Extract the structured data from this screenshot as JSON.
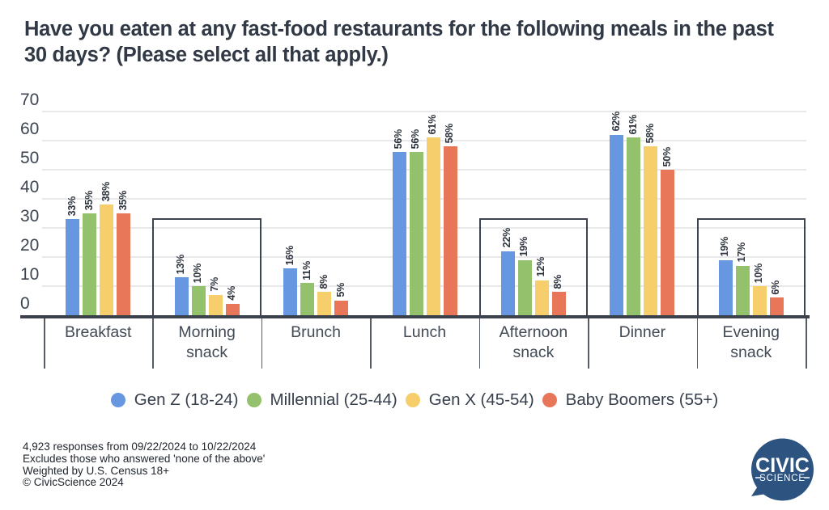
{
  "chart_data": {
    "type": "bar",
    "title": "Have you eaten at any fast-food restaurants for the following meals in the past 30 days? (Please select all that apply.)",
    "categories": [
      "Breakfast",
      "Morning\nsnack",
      "Brunch",
      "Lunch",
      "Afternoon\nsnack",
      "Dinner",
      "Evening\nsnack"
    ],
    "highlighted_categories": [
      1,
      4,
      6
    ],
    "series": [
      {
        "name": "Gen Z (18-24)",
        "color": "#6797e1",
        "values": [
          33,
          13,
          16,
          56,
          22,
          62,
          19
        ]
      },
      {
        "name": "Millennial (25-44)",
        "color": "#94c16b",
        "values": [
          35,
          10,
          11,
          56,
          19,
          61,
          17
        ]
      },
      {
        "name": "Gen X (45-54)",
        "color": "#f6cf6c",
        "values": [
          38,
          7,
          8,
          61,
          12,
          58,
          10
        ]
      },
      {
        "name": "Baby Boomers (55+)",
        "color": "#e8775a",
        "values": [
          35,
          4,
          5,
          58,
          8,
          50,
          6
        ]
      }
    ],
    "value_suffix": "%",
    "xlabel": "",
    "ylabel": "",
    "y_ticks": [
      0,
      10,
      20,
      30,
      40,
      50,
      60,
      70
    ],
    "ylim": [
      0,
      70
    ],
    "grid": true,
    "legend_position": "bottom"
  },
  "footer": {
    "lines": [
      "4,923 responses from 09/22/2024 to 10/22/2024",
      "Excludes those who answered 'none of the above'",
      "Weighted by U.S. Census 18+",
      "© CivicScience 2024"
    ]
  },
  "logo": {
    "top": "CIVIC",
    "bottom": "SCIENCE",
    "color": "#2d5380"
  }
}
